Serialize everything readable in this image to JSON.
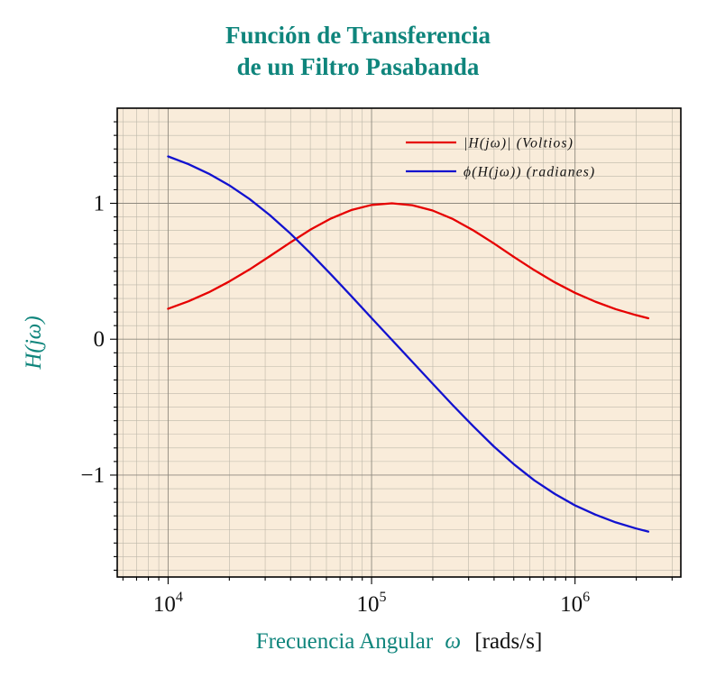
{
  "title": {
    "line1": "Función de Transferencia",
    "line2": "de un Filtro Pasabanda",
    "color": "#0f857c"
  },
  "axes": {
    "ylabel": "H(jω)",
    "xlabel": {
      "prefix": "Frecuencia Angular",
      "symbol": "ω",
      "unit": "[rads/s]"
    },
    "x_ticks": [
      {
        "log10": 4,
        "base": "10",
        "exp": "4"
      },
      {
        "log10": 5,
        "base": "10",
        "exp": "5"
      },
      {
        "log10": 6,
        "base": "10",
        "exp": "6"
      }
    ],
    "y_ticks": [
      {
        "value": 1,
        "label": "1"
      },
      {
        "value": 0,
        "label": "0"
      },
      {
        "value": -1,
        "label": "−1"
      }
    ]
  },
  "legend": [
    {
      "key": "magnitude",
      "label": "|H(jω)| (Voltios)",
      "color": "#e60000"
    },
    {
      "key": "phase",
      "label": "ϕ(H(jω)) (radianes)",
      "color": "#1212cf"
    }
  ],
  "style": {
    "plot_bg": "#f9ecda",
    "grid_minor": "#bdb7a9",
    "grid_major": "#8e897e",
    "border": "#000000",
    "teal": "#0f857c",
    "tick_label_color": "#111111"
  },
  "chart_data": {
    "type": "line",
    "title": "Función de Transferencia de un Filtro Pasabanda",
    "xlabel": "Frecuencia Angular ω [rads/s]",
    "ylabel": "H(jω)",
    "xscale": "log",
    "xlim": [
      5623,
      3311311
    ],
    "ylim": [
      -1.75,
      1.7
    ],
    "grid": true,
    "legend_position": "top-right",
    "x": [
      10000,
      12589,
      15849,
      19953,
      25119,
      31623,
      39811,
      50119,
      63096,
      79433,
      100000,
      125893,
      158489,
      199526,
      251189,
      316228,
      398107,
      501187,
      630957,
      794328,
      1000000,
      1258925,
      1584893,
      1995262,
      2290868
    ],
    "series": [
      {
        "key": "magnitude",
        "name": "|H(jω)| (Voltios)",
        "color": "#e60000",
        "values": [
          0.224,
          0.279,
          0.345,
          0.424,
          0.513,
          0.611,
          0.711,
          0.807,
          0.888,
          0.95,
          0.988,
          1.0,
          0.986,
          0.947,
          0.884,
          0.801,
          0.706,
          0.605,
          0.508,
          0.419,
          0.341,
          0.276,
          0.221,
          0.177,
          0.154
        ]
      },
      {
        "key": "phase",
        "name": "ϕ(H(jω)) (radianes)",
        "color": "#1212cf",
        "values": [
          1.345,
          1.288,
          1.218,
          1.133,
          1.032,
          0.913,
          0.779,
          0.632,
          0.477,
          0.318,
          0.156,
          -0.005,
          -0.166,
          -0.327,
          -0.487,
          -0.641,
          -0.788,
          -0.921,
          -1.039,
          -1.138,
          -1.223,
          -1.291,
          -1.348,
          -1.393,
          -1.416
        ]
      }
    ]
  }
}
